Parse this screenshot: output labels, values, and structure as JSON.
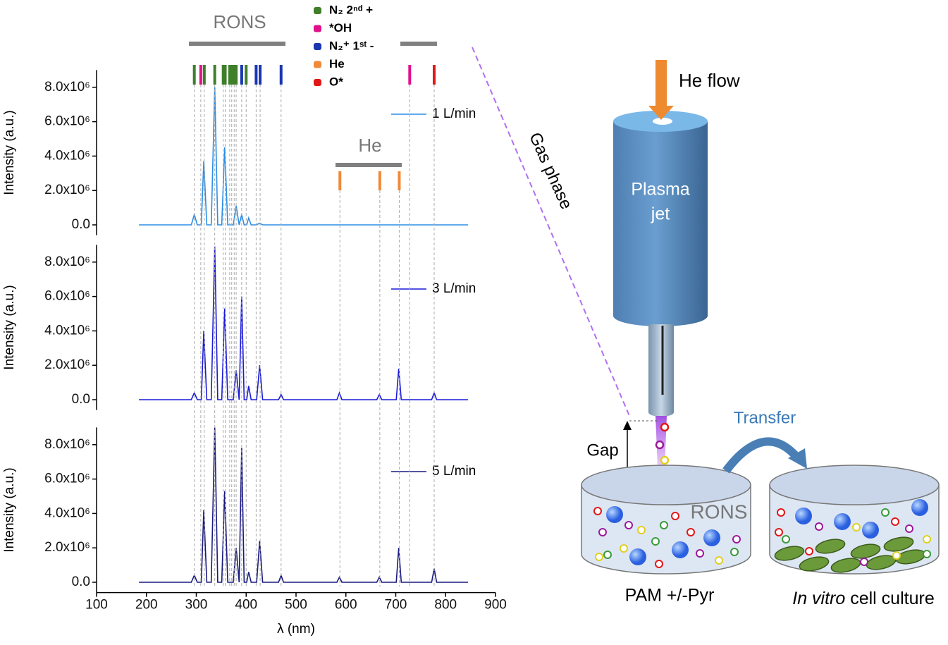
{
  "chart_data": [
    {
      "type": "line",
      "ylabel": "Intensity (a.u.)",
      "xlim": [
        100,
        900
      ],
      "ylim": [
        -600000,
        9000000
      ],
      "yticks": [
        {
          "value": 0,
          "label": "0.0"
        },
        {
          "value": 2000000,
          "label": "2.0x10⁶"
        },
        {
          "value": 4000000,
          "label": "4.0x10⁶"
        },
        {
          "value": 6000000,
          "label": "6.0x10⁶"
        },
        {
          "value": 8000000,
          "label": "8.0x10⁶"
        }
      ],
      "x": [
        185,
        290,
        296,
        302,
        310,
        315,
        321,
        330,
        337,
        343,
        351,
        357,
        363,
        374,
        380,
        386,
        391,
        396,
        401,
        405,
        410,
        421,
        427,
        433,
        465,
        470,
        475,
        582,
        587,
        592,
        662,
        667,
        672,
        701,
        706,
        711,
        772,
        777,
        782,
        845
      ],
      "series": [
        {
          "name": "1 L/min",
          "color": "#2a8ee8",
          "values": [
            0,
            0,
            600000,
            0,
            0,
            3700000,
            0,
            0,
            8000000,
            0,
            0,
            4500000,
            0,
            0,
            1100000,
            0,
            600000,
            0,
            0,
            400000,
            0,
            0,
            100000,
            0,
            0,
            0,
            0,
            0,
            0,
            0,
            0,
            0,
            0,
            0,
            0,
            0,
            0,
            0,
            0,
            0
          ]
        }
      ]
    },
    {
      "type": "line",
      "ylabel": "Intensity (a.u.)",
      "xlim": [
        100,
        900
      ],
      "ylim": [
        -600000,
        9000000
      ],
      "yticks": [
        {
          "value": 0,
          "label": "0.0"
        },
        {
          "value": 2000000,
          "label": "2.0x10⁶"
        },
        {
          "value": 4000000,
          "label": "4.0x10⁶"
        },
        {
          "value": 6000000,
          "label": "6.0x10⁶"
        },
        {
          "value": 8000000,
          "label": "8.0x10⁶"
        }
      ],
      "x": [
        185,
        290,
        296,
        302,
        310,
        315,
        321,
        330,
        337,
        343,
        351,
        357,
        363,
        374,
        380,
        386,
        391,
        396,
        401,
        405,
        410,
        421,
        427,
        433,
        465,
        470,
        475,
        582,
        587,
        592,
        662,
        667,
        672,
        701,
        706,
        711,
        772,
        777,
        782,
        845
      ],
      "series": [
        {
          "name": "3 L/min",
          "color": "#1a1ad8",
          "values": [
            0,
            0,
            400000,
            0,
            0,
            4000000,
            0,
            0,
            8900000,
            0,
            0,
            5300000,
            0,
            0,
            1700000,
            0,
            6000000,
            0,
            0,
            800000,
            0,
            0,
            2000000,
            0,
            0,
            300000,
            0,
            0,
            400000,
            0,
            0,
            300000,
            0,
            0,
            1800000,
            0,
            0,
            400000,
            0,
            0
          ]
        }
      ]
    },
    {
      "type": "line",
      "ylabel": "Intensity (a.u.)",
      "xlabel": "λ (nm)",
      "xlim": [
        100,
        900
      ],
      "ylim": [
        -600000,
        9000000
      ],
      "xticks": [
        100,
        200,
        300,
        400,
        500,
        600,
        700,
        800,
        900
      ],
      "yticks": [
        {
          "value": 0,
          "label": "0.0"
        },
        {
          "value": 2000000,
          "label": "2.0x10⁶"
        },
        {
          "value": 4000000,
          "label": "4.0x10⁶"
        },
        {
          "value": 6000000,
          "label": "6.0x10⁶"
        },
        {
          "value": 8000000,
          "label": "8.0x10⁶"
        }
      ],
      "x": [
        185,
        290,
        296,
        302,
        310,
        315,
        321,
        330,
        337,
        343,
        351,
        357,
        363,
        374,
        380,
        386,
        391,
        396,
        401,
        405,
        410,
        421,
        427,
        433,
        465,
        470,
        475,
        582,
        587,
        592,
        662,
        667,
        672,
        701,
        706,
        711,
        772,
        777,
        782,
        845
      ],
      "series": [
        {
          "name": "5 L/min",
          "color": "#1a1a80",
          "values": [
            0,
            0,
            400000,
            0,
            0,
            4200000,
            0,
            0,
            9000000,
            0,
            0,
            5300000,
            0,
            0,
            2000000,
            0,
            7800000,
            0,
            0,
            600000,
            0,
            0,
            2400000,
            0,
            0,
            400000,
            0,
            0,
            300000,
            0,
            0,
            300000,
            0,
            0,
            2000000,
            0,
            0,
            800000,
            0,
            0
          ]
        }
      ]
    }
  ],
  "line_groups": [
    {
      "name": "N₂ 2ⁿᵈ +",
      "color": "#3f7f2a",
      "x": [
        296,
        316,
        337,
        354,
        358,
        367,
        371,
        376,
        380,
        400
      ]
    },
    {
      "name": "*OH",
      "color": "#e0108a",
      "x": [
        309,
        728
      ]
    },
    {
      "name": "N₂⁺ 1ˢᵗ -",
      "color": "#1a36b0",
      "x": [
        391,
        420,
        428,
        470
      ]
    },
    {
      "name": "He",
      "color": "#f08a3a",
      "x": [
        588,
        668,
        707
      ]
    },
    {
      "name": "O*",
      "color": "#e01818",
      "x": [
        777
      ]
    }
  ],
  "annotations": {
    "rons": "RONS",
    "he": "He"
  },
  "diagram": {
    "gas_phase": "Gas phase",
    "he_flow": "He flow",
    "jet": [
      "Plasma",
      "jet"
    ],
    "transfer": "Transfer",
    "gap": "Gap",
    "rons": "RONS",
    "pam": "PAM +/-Pyr",
    "culture_italic": "In vitro",
    "culture": " cell culture"
  }
}
